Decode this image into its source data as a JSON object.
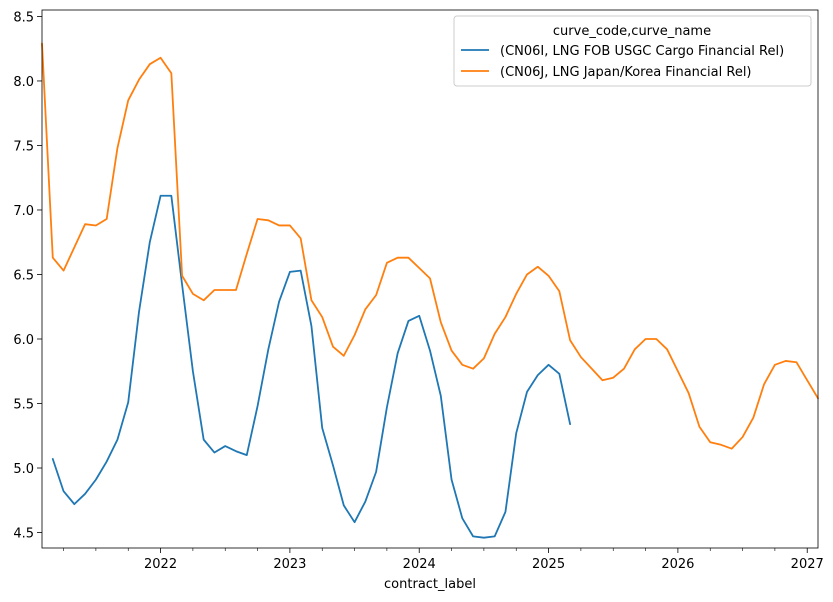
{
  "chart_data": {
    "type": "line",
    "title": "",
    "xlabel": "contract_label",
    "ylabel": "",
    "x_start": "2021-02",
    "x_tick_labels": [
      "2022",
      "2023",
      "2024",
      "2025",
      "2026",
      "2027"
    ],
    "xlim": [
      "2021-02",
      "2027-02"
    ],
    "y_ticks": [
      "4.5",
      "5.0",
      "5.5",
      "6.0",
      "6.5",
      "7.0",
      "7.5",
      "8.0",
      "8.5"
    ],
    "ylim": [
      4.38,
      8.55
    ],
    "legend": {
      "title": "curve_code,curve_name",
      "placement": "upper-right"
    },
    "grid": false,
    "series": [
      {
        "name": "(CN06I, LNG FOB USGC Cargo Financial Rel)",
        "color": "#1f77b4",
        "start": "2021-03",
        "values": [
          5.07,
          4.82,
          4.72,
          4.8,
          4.91,
          5.05,
          5.22,
          5.51,
          6.21,
          6.75,
          7.11,
          7.11,
          6.42,
          5.75,
          5.22,
          5.12,
          5.17,
          5.13,
          5.1,
          5.48,
          5.92,
          6.29,
          6.52,
          6.53,
          6.1,
          5.31,
          5.02,
          4.71,
          4.58,
          4.74,
          4.97,
          5.47,
          5.89,
          6.14,
          6.18,
          5.91,
          5.56,
          4.91,
          4.61,
          4.47,
          4.46,
          4.47,
          4.66,
          5.27,
          5.59,
          5.72,
          5.8,
          5.73,
          5.34
        ]
      },
      {
        "name": "(CN06J, LNG Japan/Korea Financial Rel)",
        "color": "#ff7f0e",
        "start": "2021-02",
        "values": [
          8.29,
          6.63,
          6.53,
          6.71,
          6.89,
          6.88,
          6.93,
          7.48,
          7.85,
          8.01,
          8.13,
          8.18,
          8.06,
          6.49,
          6.35,
          6.3,
          6.38,
          6.38,
          6.38,
          6.66,
          6.93,
          6.92,
          6.88,
          6.88,
          6.78,
          6.3,
          6.17,
          5.94,
          5.87,
          6.03,
          6.23,
          6.34,
          6.59,
          6.63,
          6.63,
          6.55,
          6.47,
          6.13,
          5.91,
          5.8,
          5.77,
          5.85,
          6.04,
          6.17,
          6.35,
          6.5,
          6.56,
          6.49,
          6.37,
          5.99,
          5.86,
          5.77,
          5.68,
          5.7,
          5.77,
          5.92,
          6.0,
          6.0,
          5.92,
          5.75,
          5.58,
          5.32,
          5.2,
          5.18,
          5.15,
          5.24,
          5.39,
          5.65,
          5.8,
          5.83,
          5.82,
          5.68,
          5.54
        ]
      }
    ]
  }
}
